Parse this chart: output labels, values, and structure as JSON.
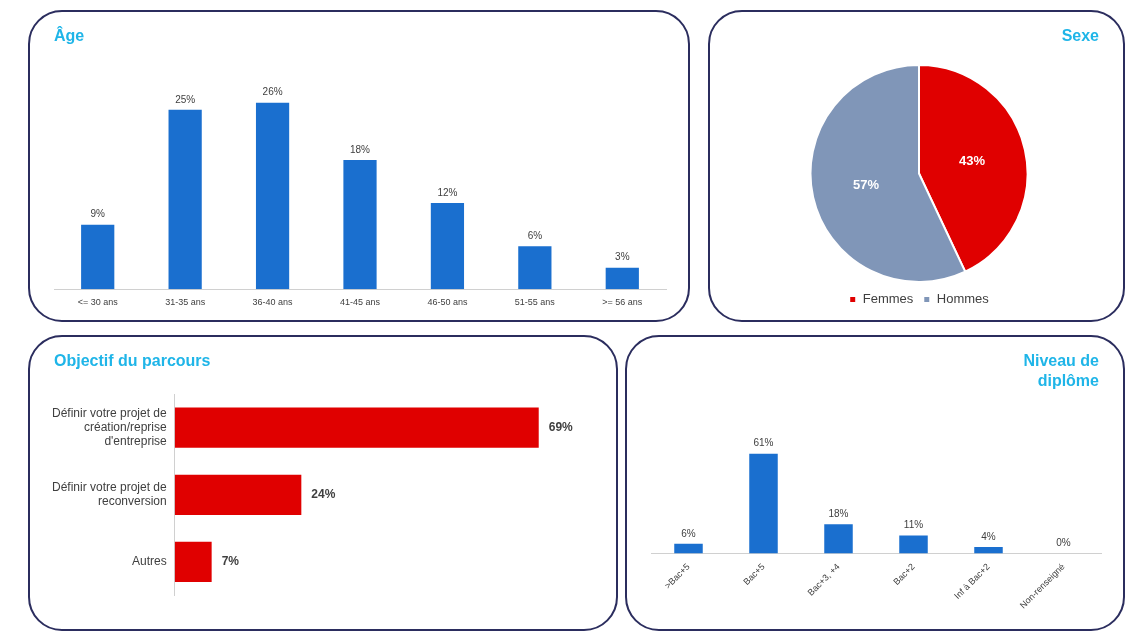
{
  "chart_data": [
    {
      "type": "bar",
      "title": "Âge",
      "categories": [
        "<= 30 ans",
        "31-35 ans",
        "36-40 ans",
        "41-45 ans",
        "46-50 ans",
        "51-55 ans",
        ">= 56 ans"
      ],
      "values": [
        9,
        25,
        26,
        18,
        12,
        6,
        3
      ],
      "value_labels": [
        "9%",
        "25%",
        "26%",
        "18%",
        "12%",
        "6%",
        "3%"
      ],
      "color": "#1a6fcf",
      "grid": false,
      "legend": false
    },
    {
      "type": "pie",
      "title": "Sexe",
      "categories": [
        "Femmes",
        "Hommes"
      ],
      "values": [
        43,
        57
      ],
      "value_labels": [
        "43%",
        "57%"
      ],
      "colors": [
        "#e00000",
        "#8096b8"
      ],
      "legend": "bottom"
    },
    {
      "type": "bar",
      "orientation": "horizontal",
      "title": "Objectif du parcours",
      "categories": [
        "Définir votre projet de création/reprise d'entreprise",
        "Définir votre projet de reconversion",
        "Autres"
      ],
      "values": [
        69,
        24,
        7
      ],
      "value_labels": [
        "69%",
        "24%",
        "7%"
      ],
      "color": "#e00000",
      "grid": false,
      "legend": false
    },
    {
      "type": "bar",
      "title": "Niveau de diplôme",
      "categories": [
        ">Bac+5",
        "Bac+5",
        "Bac+3, +4",
        "Bac+2",
        "Inf à Bac+2",
        "Non-renseigné"
      ],
      "values": [
        6,
        61,
        18,
        11,
        4,
        0
      ],
      "value_labels": [
        "6%",
        "61%",
        "18%",
        "11%",
        "4%",
        "0%"
      ],
      "color": "#1a6fcf",
      "grid": false,
      "legend": false
    }
  ]
}
